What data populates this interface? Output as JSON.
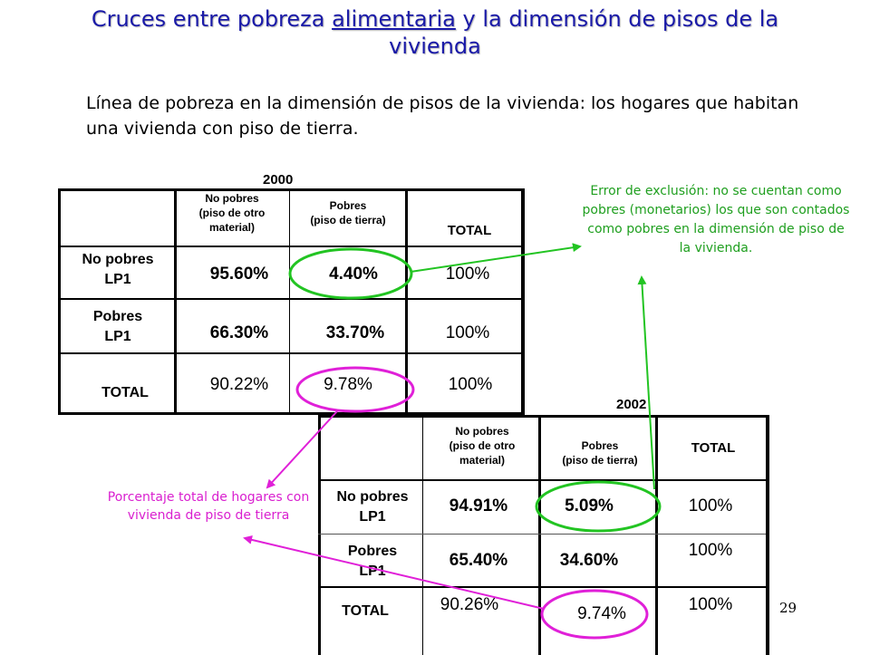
{
  "title": {
    "pre": "Cruces entre pobreza ",
    "underlined": "alimentaria",
    "post": " y la dimensión de pisos de la vivienda"
  },
  "subtitle": "Línea de pobreza en la dimensión de pisos de la vivienda: los hogares que habitan una vivienda con piso de tierra.",
  "table_2000": {
    "year": "2000",
    "col_no_pobres": [
      "No pobres",
      "(piso de otro",
      "material)"
    ],
    "col_pobres": [
      "Pobres",
      "(piso de tierra)"
    ],
    "col_total": "TOTAL",
    "rows": [
      {
        "label": [
          "No pobres",
          "LP1"
        ],
        "values": [
          "95.60%",
          "4.40%",
          "100%"
        ]
      },
      {
        "label": [
          "Pobres",
          "LP1"
        ],
        "values": [
          "66.30%",
          "33.70%",
          "100%"
        ]
      },
      {
        "label": [
          "TOTAL"
        ],
        "values": [
          "90.22%",
          "9.78%",
          "100%"
        ]
      }
    ]
  },
  "table_2002": {
    "year": "2002",
    "col_no_pobres": [
      "No pobres",
      "(piso de otro",
      "material)"
    ],
    "col_pobres": [
      "Pobres",
      "(piso de tierra)"
    ],
    "col_total": "TOTAL",
    "rows": [
      {
        "label": [
          "No pobres",
          "LP1"
        ],
        "values": [
          "94.91%",
          "5.09%",
          "100%"
        ]
      },
      {
        "label": [
          "Pobres",
          "LP1"
        ],
        "values": [
          "65.40%",
          "34.60%",
          "100%"
        ]
      },
      {
        "label": [
          "TOTAL"
        ],
        "values": [
          "90.26%",
          "9.74%",
          "100%"
        ]
      }
    ]
  },
  "annotations": {
    "exclusion_error": "Error de exclusión: no se cuentan como pobres (monetarios)  los que son contados como pobres en la dimensión de piso de la vivienda.",
    "total_percentage": "Porcentaje total de hogares con vivienda de piso de tierra"
  },
  "colors": {
    "title": "#1a1aa8",
    "green": "#22c422",
    "magenta": "#e020d8"
  },
  "page_number": "29"
}
